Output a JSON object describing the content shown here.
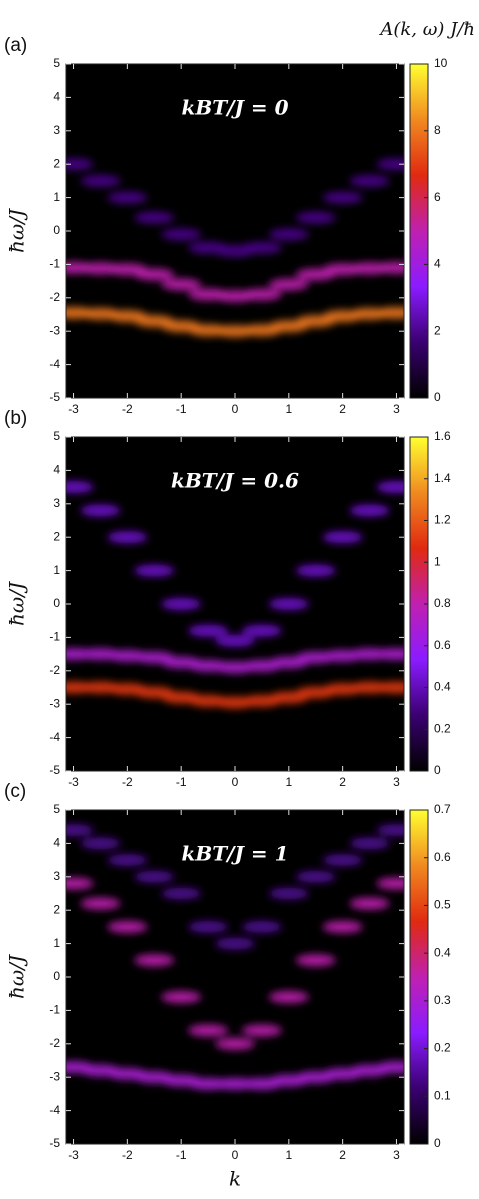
{
  "chart_data": [
    {
      "type": "heatmap",
      "panel_label": "(a)",
      "title": "kBT/J = 0",
      "xlim": [
        -3.14,
        3.14
      ],
      "xticks": [
        -3,
        -2,
        -1,
        0,
        1,
        2,
        3
      ],
      "ylim": [
        -5,
        5
      ],
      "yticks": [
        -5,
        -4,
        -3,
        -2,
        -1,
        0,
        1,
        2,
        3,
        4,
        5
      ],
      "ylabel": "ħω/J",
      "zlim": [
        0,
        10
      ],
      "zticks": [
        0,
        2,
        4,
        6,
        8,
        10
      ],
      "zlabel": "A(k, ω) J/ħ",
      "colormap": [
        "#000000",
        "#3a0070",
        "#8a1cff",
        "#c020b0",
        "#e02a10",
        "#f08a20",
        "#ffff30"
      ],
      "ridges": [
        {
          "x": [
            -3,
            -2.5,
            -2,
            -1.5,
            -1,
            -0.5,
            0,
            0.5,
            1,
            1.5,
            2,
            2.5,
            3
          ],
          "y": [
            2.0,
            1.5,
            1.0,
            0.4,
            -0.1,
            -0.5,
            -0.6,
            -0.5,
            -0.1,
            0.4,
            1.0,
            1.5,
            2.0
          ],
          "z": 2
        },
        {
          "x": [
            -3,
            -2.5,
            -2,
            -1.5,
            -1,
            -0.5,
            0,
            0.5,
            1,
            1.5,
            2,
            2.5,
            3
          ],
          "y": [
            -1.1,
            -1.12,
            -1.15,
            -1.3,
            -1.6,
            -1.9,
            -1.95,
            -1.9,
            -1.6,
            -1.3,
            -1.15,
            -1.12,
            -1.1
          ],
          "z": 5
        },
        {
          "x": [
            -3,
            -2.5,
            -2,
            -1.5,
            -1,
            -0.5,
            0,
            0.5,
            1,
            1.5,
            2,
            2.5,
            3
          ],
          "y": [
            -2.45,
            -2.48,
            -2.55,
            -2.7,
            -2.85,
            -2.97,
            -3.0,
            -2.97,
            -2.85,
            -2.7,
            -2.55,
            -2.48,
            -2.45
          ],
          "z": 8
        }
      ]
    },
    {
      "type": "heatmap",
      "panel_label": "(b)",
      "title": "kBT/J = 0.6",
      "xlim": [
        -3.14,
        3.14
      ],
      "xticks": [
        -3,
        -2,
        -1,
        0,
        1,
        2,
        3
      ],
      "ylim": [
        -5,
        5
      ],
      "yticks": [
        -5,
        -4,
        -3,
        -2,
        -1,
        0,
        1,
        2,
        3,
        4,
        5
      ],
      "ylabel": "ħω/J",
      "zlim": [
        0,
        1.6
      ],
      "zticks": [
        0,
        0.2,
        0.4,
        0.6,
        0.8,
        1,
        1.2,
        1.4,
        1.6
      ],
      "colormap": [
        "#000000",
        "#3a0070",
        "#8a1cff",
        "#c020b0",
        "#e02a10",
        "#f08a20",
        "#ffff30"
      ],
      "ridges": [
        {
          "x": [
            -3,
            -2.5,
            -2,
            -1.5,
            -1,
            -0.5,
            0,
            0.5,
            1,
            1.5,
            2,
            2.5,
            3
          ],
          "y": [
            3.5,
            2.8,
            2.0,
            1.0,
            0.0,
            -0.8,
            -1.1,
            -0.8,
            0.0,
            1.0,
            2.0,
            2.8,
            3.5
          ],
          "z": 0.45
        },
        {
          "x": [
            -3,
            -2.5,
            -2,
            -1.5,
            -1,
            -0.5,
            0,
            0.5,
            1,
            1.5,
            2,
            2.5,
            3
          ],
          "y": [
            -1.5,
            -1.5,
            -1.55,
            -1.6,
            -1.75,
            -1.85,
            -1.9,
            -1.85,
            -1.75,
            -1.6,
            -1.55,
            -1.5,
            -1.5
          ],
          "z": 0.7
        },
        {
          "x": [
            -3,
            -2.5,
            -2,
            -1.5,
            -1,
            -0.5,
            0,
            0.5,
            1,
            1.5,
            2,
            2.5,
            3
          ],
          "y": [
            -2.5,
            -2.5,
            -2.55,
            -2.65,
            -2.8,
            -2.9,
            -2.95,
            -2.9,
            -2.8,
            -2.65,
            -2.55,
            -2.5,
            -2.5
          ],
          "z": 1.1
        }
      ]
    },
    {
      "type": "heatmap",
      "panel_label": "(c)",
      "title": "kBT/J = 1",
      "xlim": [
        -3.14,
        3.14
      ],
      "xticks": [
        -3,
        -2,
        -1,
        0,
        1,
        2,
        3
      ],
      "xlabel": "k",
      "ylim": [
        -5,
        5
      ],
      "yticks": [
        -5,
        -4,
        -3,
        -2,
        -1,
        0,
        1,
        2,
        3,
        4,
        5
      ],
      "ylabel": "ħω/J",
      "zlim": [
        0,
        0.7
      ],
      "zticks": [
        0,
        0.1,
        0.2,
        0.3,
        0.4,
        0.5,
        0.6,
        0.7
      ],
      "colormap": [
        "#000000",
        "#3a0070",
        "#8a1cff",
        "#c020b0",
        "#e02a10",
        "#f08a20",
        "#ffff30"
      ],
      "ridges": [
        {
          "x": [
            -3,
            -2.5,
            -2,
            -1.5,
            -1,
            -0.5,
            0,
            0.5,
            1,
            1.5,
            2,
            2.5,
            3
          ],
          "y": [
            4.4,
            4.0,
            3.5,
            3.0,
            2.5,
            1.5,
            1.0,
            1.5,
            2.5,
            3.0,
            3.5,
            4.0,
            4.4
          ],
          "z": 0.15
        },
        {
          "x": [
            -3,
            -2.5,
            -2,
            -1.5,
            -1,
            -0.5,
            0,
            0.5,
            1,
            1.5,
            2,
            2.5,
            3
          ],
          "y": [
            2.8,
            2.2,
            1.5,
            0.5,
            -0.6,
            -1.6,
            -2.0,
            -1.6,
            -0.6,
            0.5,
            1.5,
            2.2,
            2.8
          ],
          "z": 0.35
        },
        {
          "x": [
            -3,
            -2.5,
            -2,
            -1.5,
            -1,
            -0.5,
            0,
            0.5,
            1,
            1.5,
            2,
            2.5,
            3
          ],
          "y": [
            -2.7,
            -2.8,
            -2.9,
            -3.0,
            -3.1,
            -3.2,
            -3.2,
            -3.2,
            -3.1,
            -3.0,
            -2.9,
            -2.8,
            -2.7
          ],
          "z": 0.3
        }
      ]
    }
  ]
}
